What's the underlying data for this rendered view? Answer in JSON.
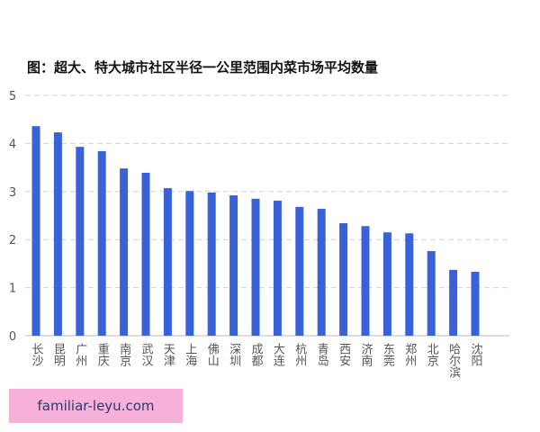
{
  "chart_data": {
    "type": "bar",
    "title": "图：超大、特大城市社区半径一公里范围内菜市场平均数量",
    "categories": [
      "长沙",
      "昆明",
      "广州",
      "重庆",
      "南京",
      "武汉",
      "天津",
      "上海",
      "佛山",
      "深圳",
      "成都",
      "大连",
      "杭州",
      "青岛",
      "西安",
      "济南",
      "东莞",
      "郑州",
      "北京",
      "哈尔滨",
      "沈阳"
    ],
    "values": [
      4.36,
      4.23,
      3.93,
      3.84,
      3.48,
      3.39,
      3.07,
      3.01,
      2.98,
      2.92,
      2.85,
      2.81,
      2.68,
      2.64,
      2.34,
      2.28,
      2.15,
      2.13,
      1.76,
      1.37,
      1.33
    ],
    "color": "#3a62d8",
    "ylim": [
      0,
      5
    ],
    "yticks": [
      0,
      1,
      2,
      3,
      4,
      5
    ],
    "grid": true
  },
  "watermark": "familiar-leyu.com"
}
